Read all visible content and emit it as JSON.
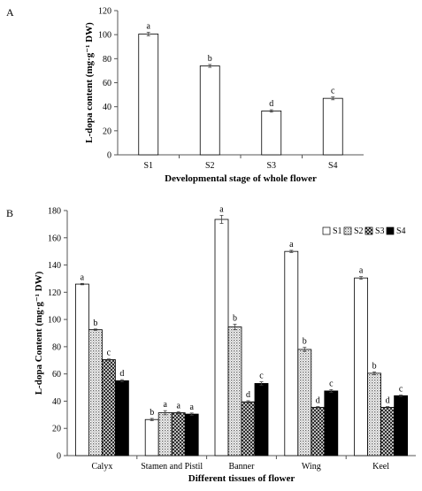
{
  "chart_data": [
    {
      "panel": "A",
      "type": "bar",
      "categories": [
        "S1",
        "S2",
        "S3",
        "S4"
      ],
      "values": [
        100.5,
        74.0,
        36.5,
        47.0
      ],
      "errors": [
        1.5,
        1.2,
        1.0,
        1.2
      ],
      "labels": [
        "a",
        "b",
        "d",
        "c"
      ],
      "xlabel": "Developmental stage of whole flower",
      "ylabel": "L-dopa content (mg·g⁻¹ DW)",
      "ylim": [
        0,
        120
      ],
      "yticks": [
        0,
        20,
        40,
        60,
        80,
        100,
        120
      ],
      "grid": false,
      "fill": "#ffffff"
    },
    {
      "panel": "B",
      "type": "bar",
      "categories": [
        "Calyx",
        "Stamen and Pistil",
        "Banner",
        "Wing",
        "Keel"
      ],
      "series": [
        {
          "name": "S1",
          "values": [
            126,
            26.5,
            173.5,
            150,
            130.5
          ],
          "errors": [
            0.5,
            0.8,
            3.0,
            0.8,
            1.0
          ],
          "labels": [
            "a",
            "b",
            "a",
            "a",
            "a"
          ],
          "pattern": "white"
        },
        {
          "name": "S2",
          "values": [
            92.5,
            31.5,
            94.5,
            78,
            60.5
          ],
          "errors": [
            0.5,
            1.5,
            2.0,
            1.5,
            1.0
          ],
          "labels": [
            "b",
            "a",
            "b",
            "b",
            "b"
          ],
          "pattern": "dots"
        },
        {
          "name": "S3",
          "values": [
            70.5,
            31.5,
            39.5,
            35.5,
            35.5
          ],
          "errors": [
            0.5,
            0.8,
            0.8,
            0.5,
            0.5
          ],
          "labels": [
            "c",
            "a",
            "d",
            "d",
            "d"
          ],
          "pattern": "crosshatch"
        },
        {
          "name": "S4",
          "values": [
            55,
            30.5,
            53,
            47.5,
            44
          ],
          "errors": [
            0.8,
            0.8,
            1.2,
            1.0,
            0.5
          ],
          "labels": [
            "d",
            "a",
            "c",
            "c",
            "c"
          ],
          "pattern": "black"
        }
      ],
      "xlabel": "Different tissues of flower",
      "ylabel": "L-dopa Content (mg·g⁻¹ DW)",
      "ylim": [
        0,
        180
      ],
      "yticks": [
        0,
        20,
        40,
        60,
        80,
        100,
        120,
        140,
        160,
        180
      ],
      "grid": false,
      "legend": "top-right"
    }
  ]
}
